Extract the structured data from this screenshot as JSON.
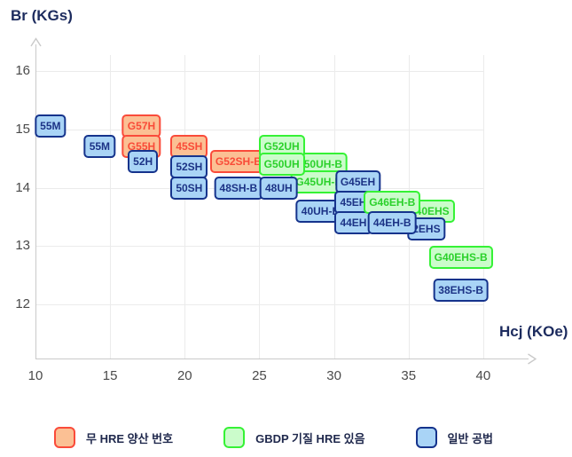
{
  "titles": {
    "y_axis": "Br (KGs)",
    "x_axis": "Hcj (KOe)"
  },
  "legend": {
    "items": [
      {
        "label": "무 HRE 양산 번호",
        "group": "orange"
      },
      {
        "label": "GBDP 기질 HRE 있음",
        "group": "green"
      },
      {
        "label": "일반 공법",
        "group": "blue"
      }
    ]
  },
  "colors": {
    "orange": {
      "fill": "#fbc094",
      "border": "#fa4b3a",
      "text": "#f94b38"
    },
    "green": {
      "fill": "#cbfccb",
      "border": "#35f235",
      "text": "#2bd12b"
    },
    "blue": {
      "fill": "#a9d4f6",
      "border": "#15338c",
      "text": "#1c3386"
    },
    "title": "#1c2b5e",
    "tick": "#4a4a4a",
    "axis": "#c9c9c9",
    "grid": "#ebebeb",
    "legend_text": "#20294d"
  },
  "chart_data": {
    "type": "scatter",
    "title": "",
    "xlabel": "Hcj (KOe)",
    "ylabel": "Br (KGs)",
    "xlim": [
      10,
      40
    ],
    "ylim": [
      12,
      16
    ],
    "x_ticks": [
      10,
      15,
      20,
      25,
      30,
      35,
      40
    ],
    "y_ticks": [
      12,
      13,
      14,
      15,
      16
    ],
    "grid": true,
    "legend_position": "bottom",
    "series_groups": [
      {
        "key": "orange",
        "name": "무 HRE 양산 번호"
      },
      {
        "key": "green",
        "name": "GBDP 기질 HRE 있음"
      },
      {
        "key": "blue",
        "name": "일반 공법"
      }
    ],
    "points": [
      {
        "label": "55M",
        "group": "blue",
        "hcj": 11.0,
        "br": 15.05
      },
      {
        "label": "55M",
        "group": "blue",
        "hcj": 14.3,
        "br": 14.7
      },
      {
        "label": "G57H",
        "group": "orange",
        "hcj": 17.1,
        "br": 15.05
      },
      {
        "label": "G55H",
        "group": "orange",
        "hcj": 17.1,
        "br": 14.7
      },
      {
        "label": "52H",
        "group": "blue",
        "hcj": 17.2,
        "br": 14.45
      },
      {
        "label": "45SH",
        "group": "orange",
        "hcj": 20.3,
        "br": 14.7
      },
      {
        "label": "52SH",
        "group": "blue",
        "hcj": 20.3,
        "br": 14.35
      },
      {
        "label": "50SH",
        "group": "blue",
        "hcj": 20.3,
        "br": 14.0
      },
      {
        "label": "G52SH-B",
        "group": "orange",
        "hcj": 23.6,
        "br": 14.45
      },
      {
        "label": "48SH-B",
        "group": "blue",
        "hcj": 23.6,
        "br": 14.0
      },
      {
        "label": "G50UH-B",
        "group": "green",
        "hcj": 29.0,
        "br": 14.4
      },
      {
        "label": "G45UH-B",
        "group": "green",
        "hcj": 29.0,
        "br": 14.1
      },
      {
        "label": "40UH-B",
        "group": "blue",
        "hcj": 29.1,
        "br": 13.6
      },
      {
        "label": "G52UH",
        "group": "green",
        "hcj": 26.5,
        "br": 14.7
      },
      {
        "label": "G50UH",
        "group": "green",
        "hcj": 26.5,
        "br": 14.4
      },
      {
        "label": "48UH",
        "group": "blue",
        "hcj": 26.3,
        "br": 14.0
      },
      {
        "label": "G45EH",
        "group": "blue",
        "hcj": 31.6,
        "br": 14.1
      },
      {
        "label": "45EH",
        "group": "blue",
        "hcj": 31.3,
        "br": 13.75
      },
      {
        "label": "44EH",
        "group": "blue",
        "hcj": 31.3,
        "br": 13.4
      },
      {
        "label": "40EHS",
        "group": "green",
        "hcj": 36.6,
        "br": 13.6
      },
      {
        "label": "2EHS",
        "group": "blue",
        "hcj": 36.2,
        "br": 13.3
      },
      {
        "label": "G46EH-B",
        "group": "green",
        "hcj": 33.9,
        "br": 13.75
      },
      {
        "label": "44EH-B",
        "group": "blue",
        "hcj": 33.9,
        "br": 13.4
      },
      {
        "label": "G40EHS-B",
        "group": "green",
        "hcj": 38.5,
        "br": 12.8
      },
      {
        "label": "38EHS-B",
        "group": "blue",
        "hcj": 38.5,
        "br": 12.25
      }
    ]
  }
}
